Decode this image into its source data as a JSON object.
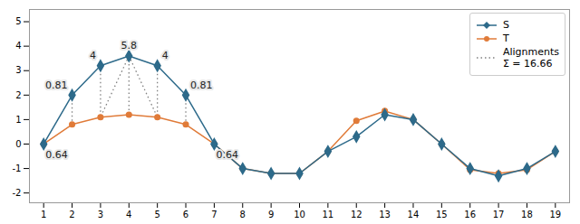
{
  "chart_data": {
    "type": "line",
    "x": [
      1,
      2,
      3,
      4,
      5,
      6,
      7,
      8,
      9,
      10,
      11,
      12,
      13,
      14,
      15,
      16,
      17,
      18,
      19
    ],
    "series": [
      {
        "name": "S",
        "color": "#2d6a8a",
        "marker": "diamond",
        "values": [
          0,
          2,
          3.2,
          3.6,
          3.2,
          2,
          0,
          -1,
          -1.2,
          -1.2,
          -0.3,
          0.3,
          1.2,
          1.0,
          0.0,
          -1.0,
          -1.3,
          -1.0,
          -0.3
        ]
      },
      {
        "name": "T",
        "color": "#e07b39",
        "marker": "circle",
        "values": [
          0,
          0.8,
          1.1,
          1.2,
          1.1,
          0.8,
          0,
          -1,
          -1.2,
          -1.2,
          -0.3,
          0.95,
          1.35,
          1.0,
          0.0,
          -1.05,
          -1.2,
          -1.05,
          -0.3
        ]
      }
    ],
    "alignments": {
      "name": "Alignments\nΣ = 16.66",
      "color": "gray",
      "line_style": "dotted",
      "segments": [
        [
          1,
          0,
          1,
          0
        ],
        [
          2,
          2,
          2,
          0.8
        ],
        [
          3,
          3.2,
          3,
          1.1
        ],
        [
          4,
          3.6,
          3,
          1.1
        ],
        [
          4,
          3.6,
          4,
          1.2
        ],
        [
          4,
          3.6,
          5,
          1.1
        ],
        [
          5,
          3.2,
          5,
          1.1
        ],
        [
          6,
          2,
          6,
          0.8
        ],
        [
          7,
          0,
          7,
          0
        ]
      ]
    },
    "annotations": [
      {
        "x": 1,
        "y": 0,
        "text": "0.64"
      },
      {
        "x": 2,
        "y": 2,
        "text": "0.81"
      },
      {
        "x": 3,
        "y": 3.2,
        "text": "4"
      },
      {
        "x": 4,
        "y": 3.6,
        "text": "5.8"
      },
      {
        "x": 5,
        "y": 3.2,
        "text": "4"
      },
      {
        "x": 6,
        "y": 2,
        "text": "0.81"
      },
      {
        "x": 7,
        "y": 0,
        "text": "0.64"
      }
    ],
    "xlim": [
      0.5,
      19.5
    ],
    "xticks": [
      1,
      2,
      3,
      4,
      5,
      6,
      7,
      8,
      9,
      10,
      11,
      12,
      13,
      14,
      15,
      16,
      17,
      18,
      19
    ],
    "ylim": [
      -2.4,
      5.5
    ],
    "yticks": [
      -2,
      -1,
      0,
      1,
      2,
      3,
      4,
      5
    ],
    "legend": "upper right"
  }
}
